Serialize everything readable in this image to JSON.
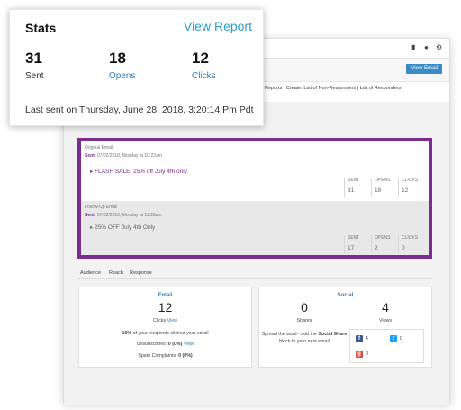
{
  "stats_card": {
    "title": "Stats",
    "view_report_link": "View Report",
    "metrics": [
      {
        "value": "31",
        "label": "Sent"
      },
      {
        "value": "18",
        "label": "Opens"
      },
      {
        "value": "12",
        "label": "Clicks"
      }
    ],
    "last_sent": "Last sent on Thursday, June 28, 2018, 3:20:14 Pm Pdt"
  },
  "toolbar": {
    "view_email_button": "View Email",
    "download_reports_link": "nload Reports",
    "create_label": "Create:",
    "non_responders_link": "List of Non-Responders",
    "separator": "|",
    "responders_link": "List of Responders"
  },
  "original_email": {
    "section_label": "Original Email",
    "sent_label": "Sent:",
    "sent_date": "07/02/2018, Monday at 10:22am",
    "subject": "FLASH SALE: 25% off July 4th only",
    "stats": [
      {
        "label": "SENT",
        "value": "31"
      },
      {
        "label": "OPENS",
        "value": "18"
      },
      {
        "label": "CLICKS",
        "value": "12"
      }
    ]
  },
  "followup_email": {
    "section_label": "Follow-Up Email",
    "sent_label": "Sent:",
    "sent_date": "07/02/2018, Monday at 11:28am",
    "subject": "25% OFF July 4th Only",
    "stats": [
      {
        "label": "SENT",
        "value": "17"
      },
      {
        "label": "OPENS",
        "value": "2"
      },
      {
        "label": "CLICKS",
        "value": "0"
      }
    ]
  },
  "tabs": [
    {
      "label": "Audience"
    },
    {
      "label": "Reach"
    },
    {
      "label": "Response",
      "active": true
    }
  ],
  "email_card": {
    "title": "Email",
    "clicks_value": "12",
    "clicks_label": "Clicks",
    "clicks_view_link": "View",
    "pct_bold": "16%",
    "pct_text": "of your recipients clicked your email",
    "unsub_label": "Unsubscribes:",
    "unsub_value": "0 (0%)",
    "unsub_view_link": "View",
    "spam_label": "Spam Complaints:",
    "spam_value": "0 (0%)"
  },
  "social_card": {
    "title": "Social",
    "shares_value": "0",
    "shares_label": "Shares",
    "views_value": "4",
    "views_label": "Views",
    "spread_text_1": "Spread the word - add the",
    "spread_bold_1": "Social",
    "spread_bold_2": "Share",
    "spread_text_2": "block to your next email",
    "facebook_count": "4",
    "twitter_count": "0",
    "googleplus_count": "0"
  },
  "colors": {
    "purple": "#7b2d8e",
    "link_blue": "#2a7fb8",
    "report_teal": "#2aa0c4",
    "button_blue": "#3a8bc6"
  }
}
